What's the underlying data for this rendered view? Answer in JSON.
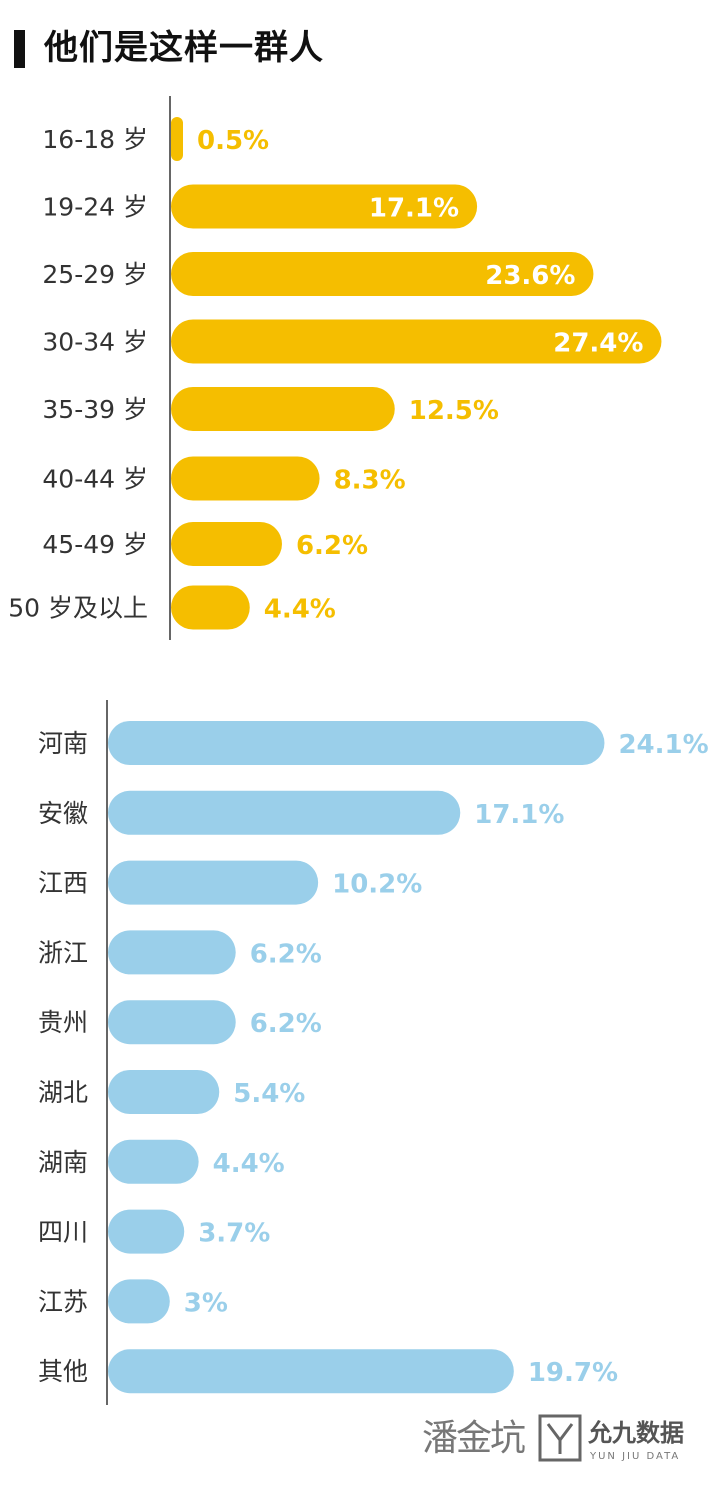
{
  "header": {
    "title": "他们是这样一群人"
  },
  "chart_data": [
    {
      "type": "bar",
      "orientation": "horizontal",
      "categories": [
        "16-18 岁",
        "19-24 岁",
        "25-29 岁",
        "30-34 岁",
        "35-39 岁",
        "40-44 岁",
        "45-49 岁",
        "50 岁及以上"
      ],
      "values": [
        0.5,
        17.1,
        23.6,
        27.4,
        12.5,
        8.3,
        6.2,
        4.4
      ],
      "value_labels": [
        "0.5%",
        "17.1%",
        "23.6%",
        "27.4%",
        "12.5%",
        "8.3%",
        "6.2%",
        "4.4%"
      ],
      "unit": "%",
      "color": "#F5BE00",
      "inside_label_color": "#ffffff",
      "grid": false
    },
    {
      "type": "bar",
      "orientation": "horizontal",
      "categories": [
        "河南",
        "安徽",
        "江西",
        "浙江",
        "贵州",
        "湖北",
        "湖南",
        "四川",
        "江苏",
        "其他"
      ],
      "values": [
        24.1,
        17.1,
        10.2,
        6.2,
        6.2,
        5.4,
        4.4,
        3.7,
        3,
        19.7
      ],
      "value_labels": [
        "24.1%",
        "17.1%",
        "10.2%",
        "6.2%",
        "6.2%",
        "5.4%",
        "4.4%",
        "3.7%",
        "3%",
        "19.7%"
      ],
      "unit": "%",
      "color": "#9ACFEA",
      "grid": false
    }
  ],
  "footer": {
    "logos": [
      {
        "icon": "pujinkeng-logo",
        "text": "潘金坑"
      },
      {
        "icon": "yunjiu-logo",
        "text": "允九数据",
        "subtext": "YUN JIU DATA"
      }
    ]
  }
}
